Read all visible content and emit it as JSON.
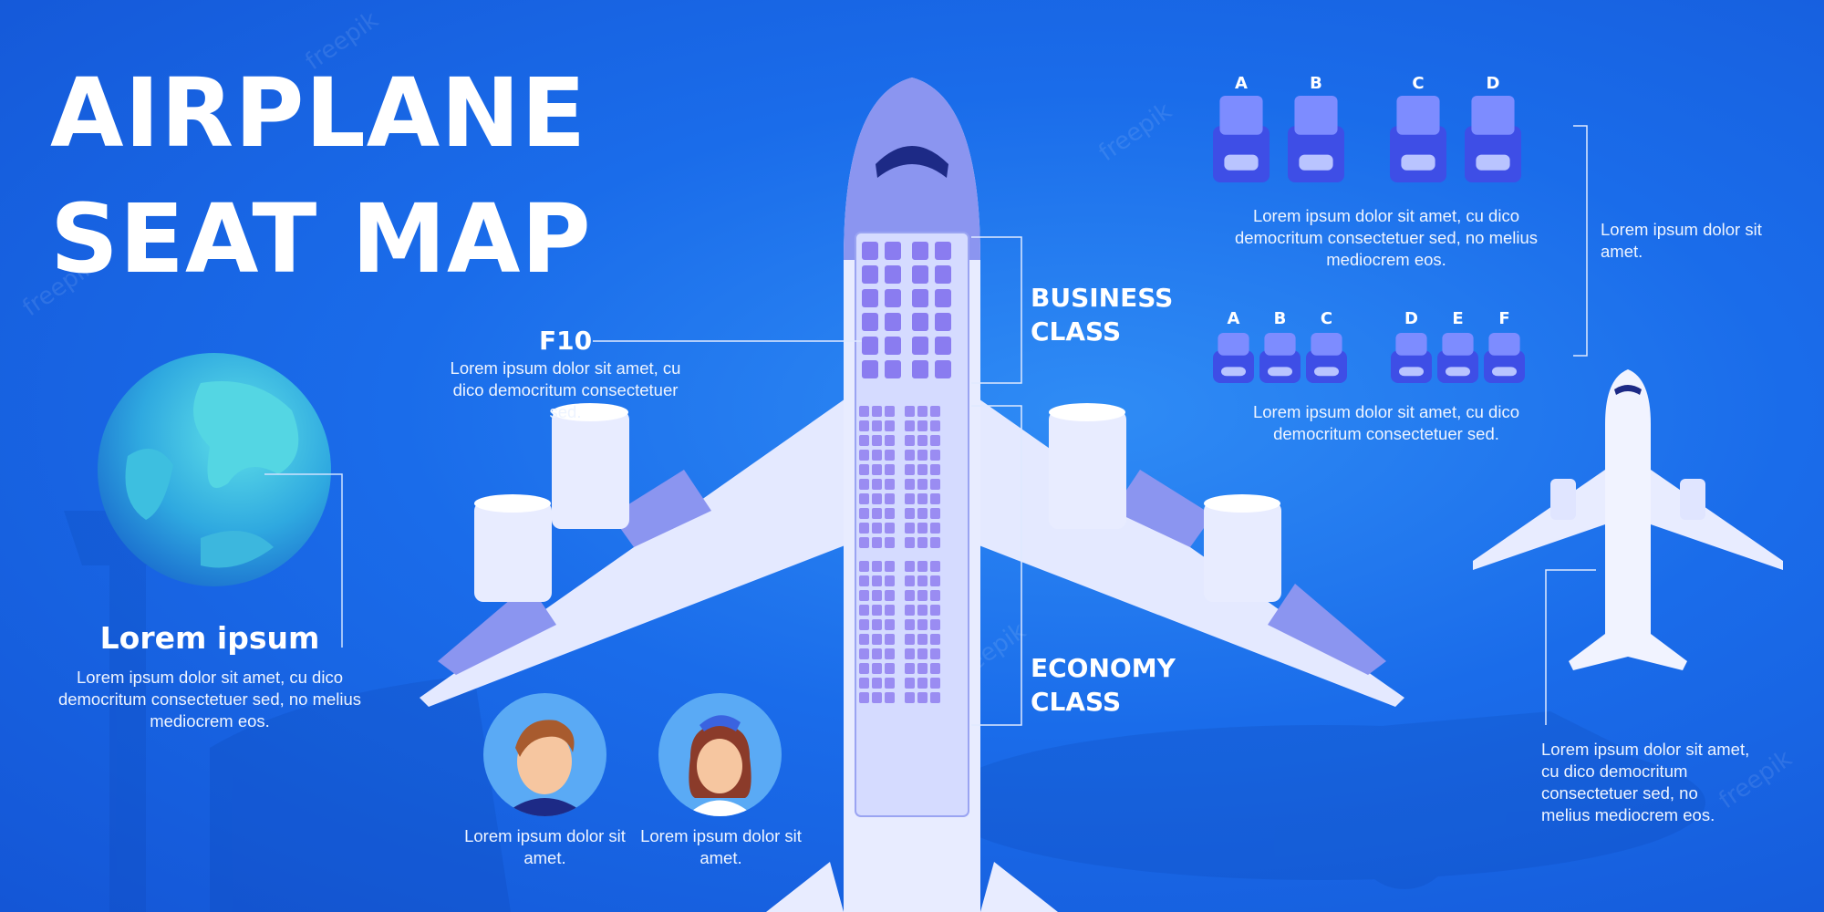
{
  "title": {
    "line1": "AIRPLANE",
    "line2": "SEAT MAP"
  },
  "seat_callout": {
    "id": "F10",
    "text": "Lorem ipsum dolor sit amet, cu dico democritum consectetuer sed."
  },
  "classes": {
    "business": [
      "BUSINESS",
      "CLASS"
    ],
    "economy": [
      "ECONOMY",
      "CLASS"
    ]
  },
  "globe_block": {
    "heading": "Lorem ipsum",
    "text": "Lorem ipsum dolor sit amet, cu dico democritum consectetuer sed, no melius mediocrem eos."
  },
  "crew": [
    {
      "caption": "Lorem ipsum dolor sit amet."
    },
    {
      "caption": "Lorem ipsum dolor sit amet."
    }
  ],
  "business_seats": {
    "letters_left": [
      "A",
      "B"
    ],
    "letters_right": [
      "C",
      "D"
    ],
    "text": "Lorem ipsum dolor sit amet, cu dico democritum consectetuer sed, no melius mediocrem eos."
  },
  "economy_seats": {
    "letters_left": [
      "A",
      "B",
      "C"
    ],
    "letters_right": [
      "D",
      "E",
      "F"
    ],
    "text": "Lorem ipsum dolor sit amet, cu dico democritum consectetuer sed."
  },
  "bracket_text": "Lorem ipsum dolor sit amet.",
  "small_plane_text": "Lorem ipsum dolor sit amet, cu dico democritum consectetuer sed, no melius mediocrem eos.",
  "watermark": "freepik",
  "colors": {
    "background": "#1a6cea",
    "seat_blue": "#4a5cf0",
    "seat_light": "#8fa0ff",
    "plane": "#e8ecff",
    "plane_accent": "#8b95f0"
  }
}
